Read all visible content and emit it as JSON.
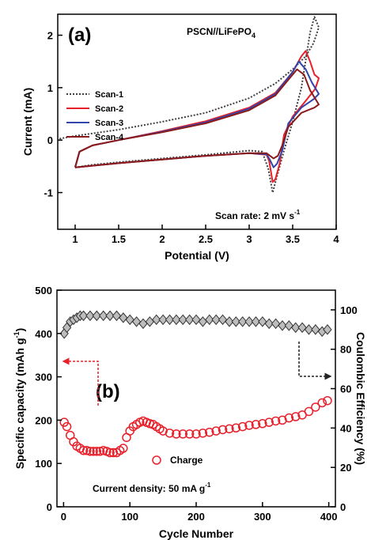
{
  "panel_a": {
    "label": "(a)",
    "title_main": "PSCN//LiFePO",
    "title_sub": "4",
    "xlabel": "Potential (V)",
    "ylabel": "Current (mA)",
    "annotation_main": "Scan rate: 2 mV s",
    "annotation_sup": "-1",
    "legend": [
      "Scan-1",
      "Scan-2",
      "Scan-3",
      "Scan-4"
    ],
    "xticks": [
      "1",
      "1.5",
      "2",
      "2.5",
      "3",
      "3.5",
      "4"
    ],
    "yticks": [
      "-1",
      "0",
      "1",
      "2"
    ]
  },
  "panel_b": {
    "label": "(b)",
    "xlabel": "Cycle Number",
    "ylabel_left_main": "Specific capacity (mAh g",
    "ylabel_left_sup": "-1",
    "ylabel_left_end": ")",
    "ylabel_right": "Coulombic Efficiency (%)",
    "legend_charge": "Charge",
    "annotation_main": "Current density: 50 mA g",
    "annotation_sup": "-1",
    "xticks": [
      "0",
      "100",
      "200",
      "300",
      "400"
    ],
    "yticks_left": [
      "0",
      "100",
      "200",
      "300",
      "400",
      "500"
    ],
    "yticks_right": [
      "0",
      "20",
      "40",
      "60",
      "80",
      "100"
    ]
  },
  "colors": {
    "scan1": "#404040",
    "scan2": "#e8202a",
    "scan3": "#3344aa",
    "scan4": "#8b1a1a",
    "capacity": "#e8202a",
    "efficiency": "#333333"
  },
  "chart_data": [
    {
      "type": "line",
      "name": "cyclic voltammetry",
      "xlim": [
        0.8,
        4.0
      ],
      "ylim": [
        -1.7,
        2.4
      ],
      "xlabel": "Potential (V)",
      "ylabel": "Current (mA)",
      "legend_placement": "left",
      "series": [
        {
          "name": "Scan-1",
          "style": "dotted",
          "points": [
            [
              1.0,
              -0.52
            ],
            [
              1.2,
              -0.47
            ],
            [
              1.5,
              -0.42
            ],
            [
              2.0,
              -0.35
            ],
            [
              2.5,
              -0.28
            ],
            [
              3.0,
              -0.2
            ],
            [
              3.15,
              -0.22
            ],
            [
              3.22,
              -0.55
            ],
            [
              3.27,
              -1.0
            ],
            [
              3.31,
              -0.75
            ],
            [
              3.4,
              -0.2
            ],
            [
              3.5,
              0.35
            ],
            [
              3.6,
              1.0
            ],
            [
              3.7,
              2.05
            ],
            [
              3.75,
              2.35
            ],
            [
              3.8,
              2.15
            ],
            [
              3.74,
              1.85
            ],
            [
              3.65,
              1.6
            ],
            [
              3.5,
              1.35
            ],
            [
              3.3,
              1.08
            ],
            [
              3.0,
              0.8
            ],
            [
              2.5,
              0.52
            ],
            [
              2.0,
              0.35
            ],
            [
              1.5,
              0.2
            ],
            [
              1.0,
              0.08
            ],
            [
              0.8,
              0.02
            ]
          ]
        },
        {
          "name": "Scan-2",
          "style": "solid",
          "points": [
            [
              1.0,
              -0.52
            ],
            [
              1.05,
              -0.22
            ],
            [
              1.2,
              -0.1
            ],
            [
              1.5,
              0.0
            ],
            [
              2.0,
              0.17
            ],
            [
              2.5,
              0.36
            ],
            [
              3.0,
              0.62
            ],
            [
              3.3,
              0.9
            ],
            [
              3.5,
              1.3
            ],
            [
              3.6,
              1.6
            ],
            [
              3.65,
              1.7
            ],
            [
              3.7,
              1.5
            ],
            [
              3.75,
              1.25
            ],
            [
              3.8,
              1.18
            ],
            [
              3.76,
              0.98
            ],
            [
              3.65,
              0.75
            ],
            [
              3.5,
              0.45
            ],
            [
              3.4,
              0.1
            ],
            [
              3.35,
              -0.45
            ],
            [
              3.3,
              -0.75
            ],
            [
              3.27,
              -0.8
            ],
            [
              3.23,
              -0.4
            ],
            [
              3.2,
              -0.28
            ],
            [
              3.0,
              -0.25
            ],
            [
              2.5,
              -0.3
            ],
            [
              2.0,
              -0.37
            ],
            [
              1.5,
              -0.44
            ],
            [
              1.0,
              -0.52
            ]
          ]
        },
        {
          "name": "Scan-3",
          "style": "solid",
          "points": [
            [
              1.0,
              -0.52
            ],
            [
              1.05,
              -0.22
            ],
            [
              1.2,
              -0.1
            ],
            [
              1.5,
              0.0
            ],
            [
              2.0,
              0.16
            ],
            [
              2.5,
              0.34
            ],
            [
              3.0,
              0.6
            ],
            [
              3.3,
              0.88
            ],
            [
              3.5,
              1.3
            ],
            [
              3.57,
              1.5
            ],
            [
              3.65,
              1.35
            ],
            [
              3.72,
              1.1
            ],
            [
              3.8,
              0.88
            ],
            [
              3.74,
              0.78
            ],
            [
              3.6,
              0.62
            ],
            [
              3.45,
              0.32
            ],
            [
              3.38,
              -0.2
            ],
            [
              3.32,
              -0.45
            ],
            [
              3.28,
              -0.52
            ],
            [
              3.24,
              -0.38
            ],
            [
              3.2,
              -0.27
            ],
            [
              3.0,
              -0.25
            ],
            [
              2.5,
              -0.3
            ],
            [
              2.0,
              -0.37
            ],
            [
              1.5,
              -0.44
            ],
            [
              1.0,
              -0.52
            ]
          ]
        },
        {
          "name": "Scan-4",
          "style": "solid",
          "points": [
            [
              1.0,
              -0.52
            ],
            [
              1.05,
              -0.22
            ],
            [
              1.2,
              -0.1
            ],
            [
              1.5,
              0.0
            ],
            [
              2.0,
              0.15
            ],
            [
              2.5,
              0.32
            ],
            [
              3.0,
              0.57
            ],
            [
              3.3,
              0.85
            ],
            [
              3.45,
              1.15
            ],
            [
              3.55,
              1.35
            ],
            [
              3.63,
              1.25
            ],
            [
              3.7,
              0.95
            ],
            [
              3.8,
              0.68
            ],
            [
              3.75,
              0.62
            ],
            [
              3.6,
              0.52
            ],
            [
              3.45,
              0.25
            ],
            [
              3.38,
              -0.1
            ],
            [
              3.33,
              -0.3
            ],
            [
              3.28,
              -0.35
            ],
            [
              3.24,
              -0.3
            ],
            [
              3.2,
              -0.25
            ],
            [
              3.0,
              -0.25
            ],
            [
              2.5,
              -0.3
            ],
            [
              2.0,
              -0.37
            ],
            [
              1.5,
              -0.44
            ],
            [
              1.0,
              -0.52
            ]
          ]
        }
      ]
    },
    {
      "type": "scatter",
      "name": "cycling",
      "xlim": [
        -10,
        410
      ],
      "ylim_left": [
        0,
        500
      ],
      "ylim_right": [
        0,
        110
      ],
      "xlabel": "Cycle Number",
      "series": [
        {
          "name": "Charge",
          "axis": "left",
          "marker": "circle",
          "points": [
            [
              1,
              195
            ],
            [
              5,
              185
            ],
            [
              10,
              165
            ],
            [
              15,
              150
            ],
            [
              20,
              140
            ],
            [
              25,
              135
            ],
            [
              30,
              130
            ],
            [
              35,
              130
            ],
            [
              40,
              128
            ],
            [
              45,
              128
            ],
            [
              50,
              128
            ],
            [
              55,
              128
            ],
            [
              60,
              130
            ],
            [
              65,
              128
            ],
            [
              70,
              125
            ],
            [
              75,
              125
            ],
            [
              80,
              125
            ],
            [
              85,
              130
            ],
            [
              90,
              135
            ],
            [
              95,
              160
            ],
            [
              100,
              175
            ],
            [
              105,
              185
            ],
            [
              110,
              190
            ],
            [
              115,
              195
            ],
            [
              120,
              198
            ],
            [
              125,
              195
            ],
            [
              130,
              192
            ],
            [
              135,
              190
            ],
            [
              140,
              185
            ],
            [
              145,
              180
            ],
            [
              150,
              175
            ],
            [
              160,
              170
            ],
            [
              170,
              168
            ],
            [
              180,
              168
            ],
            [
              190,
              168
            ],
            [
              200,
              168
            ],
            [
              210,
              170
            ],
            [
              220,
              172
            ],
            [
              230,
              175
            ],
            [
              240,
              178
            ],
            [
              250,
              180
            ],
            [
              260,
              182
            ],
            [
              270,
              185
            ],
            [
              280,
              188
            ],
            [
              290,
              190
            ],
            [
              300,
              192
            ],
            [
              310,
              195
            ],
            [
              320,
              198
            ],
            [
              330,
              200
            ],
            [
              340,
              205
            ],
            [
              350,
              208
            ],
            [
              360,
              212
            ],
            [
              370,
              220
            ],
            [
              380,
              230
            ],
            [
              390,
              240
            ],
            [
              398,
              245
            ]
          ]
        },
        {
          "name": "Coulombic Efficiency",
          "axis": "right",
          "marker": "diamond",
          "points": [
            [
              1,
              88
            ],
            [
              5,
              91
            ],
            [
              10,
              94
            ],
            [
              15,
              95
            ],
            [
              20,
              96
            ],
            [
              25,
              97
            ],
            [
              30,
              97
            ],
            [
              40,
              97
            ],
            [
              50,
              97
            ],
            [
              60,
              97
            ],
            [
              70,
              97
            ],
            [
              80,
              97
            ],
            [
              90,
              96
            ],
            [
              100,
              95
            ],
            [
              110,
              94
            ],
            [
              120,
              93
            ],
            [
              130,
              94
            ],
            [
              140,
              95
            ],
            [
              150,
              95
            ],
            [
              160,
              95
            ],
            [
              170,
              95
            ],
            [
              180,
              95
            ],
            [
              190,
              95
            ],
            [
              200,
              95
            ],
            [
              210,
              94
            ],
            [
              220,
              95
            ],
            [
              230,
              95
            ],
            [
              240,
              95
            ],
            [
              250,
              94
            ],
            [
              260,
              94
            ],
            [
              270,
              94
            ],
            [
              280,
              94
            ],
            [
              290,
              94
            ],
            [
              300,
              94
            ],
            [
              310,
              93
            ],
            [
              320,
              93
            ],
            [
              330,
              92
            ],
            [
              340,
              92
            ],
            [
              350,
              91
            ],
            [
              360,
              91
            ],
            [
              370,
              90
            ],
            [
              380,
              90
            ],
            [
              390,
              89
            ],
            [
              398,
              90
            ]
          ]
        }
      ]
    }
  ]
}
